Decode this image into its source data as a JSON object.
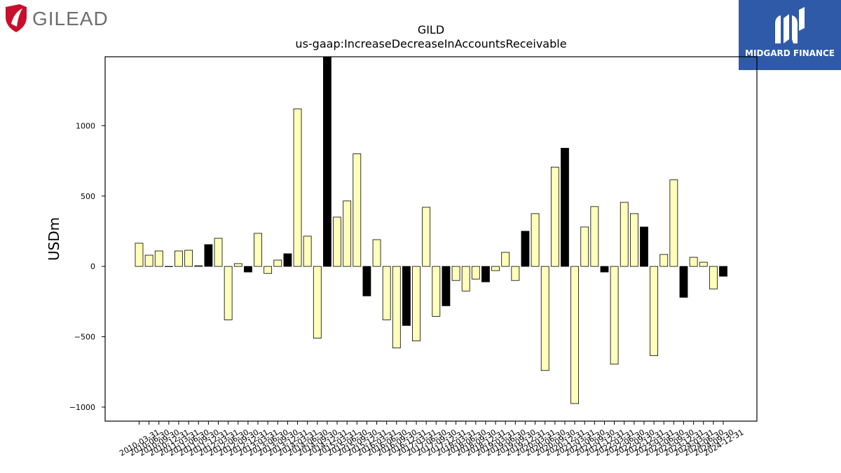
{
  "branding": {
    "company_logo_text": "GILEAD",
    "sponsor_logo_text": "MIDGARD FINANCE",
    "company_color": "#c8102e",
    "sponsor_color": "#2f5aa8"
  },
  "chart_data": {
    "type": "bar",
    "title": "GILD",
    "subtitle": "us-gaap:IncreaseDecreaseInAccountsReceivable",
    "xlabel": "",
    "ylabel": "USDm",
    "ylim": [
      -1100,
      1490
    ],
    "yticks": [
      -1000,
      -500,
      0,
      500,
      1000
    ],
    "ytick_labels": [
      "−1000",
      "−500",
      "0",
      "500",
      "1000"
    ],
    "grid": false,
    "legend": "none",
    "bar_color": "#ffffbb",
    "highlight_color": "#000000",
    "categories": [
      "2010-03-31",
      "2010-06-30",
      "2010-09-30",
      "2010-12-31",
      "2011-03-31",
      "2011-06-30",
      "2011-09-30",
      "2011-12-31",
      "2012-03-31",
      "2012-06-30",
      "2012-09-30",
      "2012-12-31",
      "2013-03-31",
      "2013-06-30",
      "2013-09-30",
      "2013-12-31",
      "2014-03-31",
      "2014-06-30",
      "2014-09-30",
      "2014-12-31",
      "2015-03-31",
      "2015-06-30",
      "2015-09-30",
      "2015-12-31",
      "2016-03-31",
      "2016-06-30",
      "2016-09-30",
      "2016-12-31",
      "2017-03-31",
      "2017-06-30",
      "2017-09-30",
      "2017-12-31",
      "2018-03-31",
      "2018-06-30",
      "2018-09-30",
      "2018-12-31",
      "2019-03-31",
      "2019-06-30",
      "2019-09-30",
      "2019-12-31",
      "2020-03-31",
      "2020-06-30",
      "2020-09-30",
      "2020-12-31",
      "2021-03-31",
      "2021-06-30",
      "2021-09-30",
      "2021-12-31",
      "2022-03-31",
      "2022-06-30",
      "2022-09-30",
      "2022-12-31",
      "2023-03-31",
      "2023-06-30",
      "2023-09-30",
      "2023-12-31",
      "2024-03-31",
      "2024-06-30",
      "2024-09-30",
      "2024-12-31"
    ],
    "values": [
      165,
      80,
      110,
      0,
      110,
      115,
      5,
      155,
      200,
      -380,
      20,
      -40,
      235,
      -50,
      45,
      90,
      1120,
      215,
      -510,
      1490,
      350,
      465,
      800,
      -210,
      190,
      -380,
      -580,
      -420,
      -530,
      420,
      -355,
      -280,
      -100,
      -175,
      -90,
      -110,
      -30,
      100,
      -100,
      250,
      375,
      -740,
      705,
      840,
      -975,
      280,
      425,
      -40,
      -695,
      455,
      375,
      280,
      -635,
      85,
      615,
      -220,
      65,
      30,
      -160,
      -70
    ],
    "highlight": [
      false,
      false,
      false,
      false,
      false,
      false,
      false,
      true,
      false,
      false,
      false,
      true,
      false,
      false,
      false,
      true,
      false,
      false,
      false,
      true,
      false,
      false,
      false,
      true,
      false,
      false,
      false,
      true,
      false,
      false,
      false,
      true,
      false,
      false,
      false,
      true,
      false,
      false,
      false,
      true,
      false,
      false,
      false,
      true,
      false,
      false,
      false,
      true,
      false,
      false,
      false,
      true,
      false,
      false,
      false,
      true,
      false,
      false,
      false,
      true
    ]
  }
}
